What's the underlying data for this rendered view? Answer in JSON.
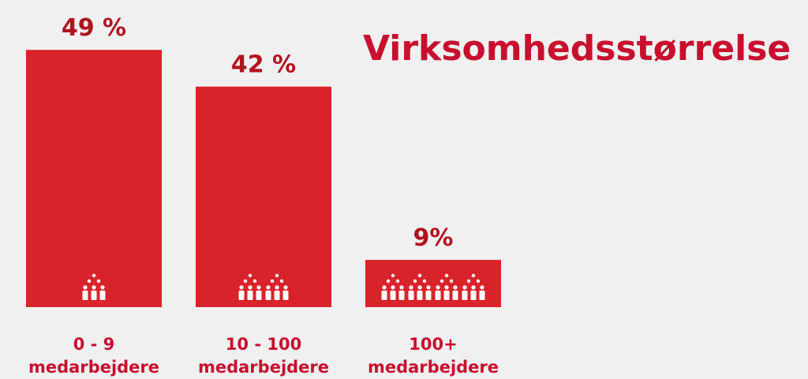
{
  "chart_data": {
    "type": "bar",
    "title": "Virksomhedsstørrelse",
    "categories": [
      "0 - 9\nmedarbejdere",
      "10 - 100\nmedarbejdere",
      "100+\nmedarbejdere"
    ],
    "values": [
      49,
      42,
      9
    ],
    "value_labels": [
      "49 %",
      "42 %",
      "9%"
    ],
    "color": "#d9232a"
  }
}
